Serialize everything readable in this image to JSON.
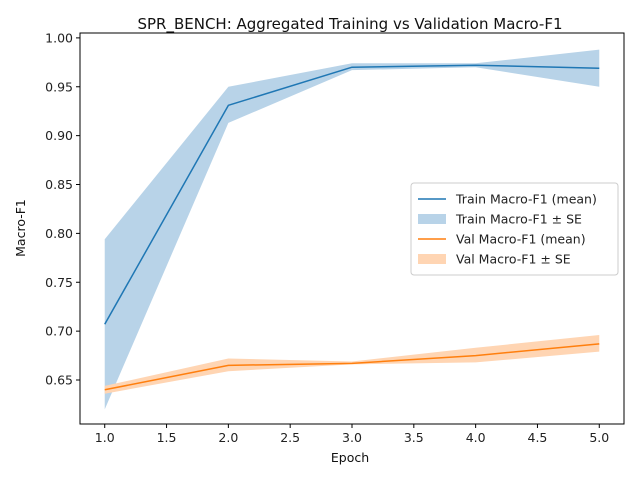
{
  "chart_data": {
    "type": "line",
    "title": "SPR_BENCH: Aggregated Training vs Validation Macro-F1",
    "xlabel": "Epoch",
    "ylabel": "Macro-F1",
    "xlim": [
      0.8,
      5.2
    ],
    "ylim": [
      0.605,
      1.005
    ],
    "xticks": [
      1.0,
      1.5,
      2.0,
      2.5,
      3.0,
      3.5,
      4.0,
      4.5,
      5.0
    ],
    "xtick_labels": [
      "1.0",
      "1.5",
      "2.0",
      "2.5",
      "3.0",
      "3.5",
      "4.0",
      "4.5",
      "5.0"
    ],
    "yticks": [
      0.65,
      0.7,
      0.75,
      0.8,
      0.85,
      0.9,
      0.95,
      1.0
    ],
    "ytick_labels": [
      "0.65",
      "0.70",
      "0.75",
      "0.80",
      "0.85",
      "0.90",
      "0.95",
      "1.00"
    ],
    "grid": false,
    "legend_position": "center-right",
    "x": [
      1,
      2,
      3,
      4,
      5
    ],
    "series": [
      {
        "name": "Train Macro-F1 (mean)",
        "band_name": "Train Macro-F1 ± SE",
        "color": "#1f77b4",
        "band_color": "#b8d3e8",
        "mean": [
          0.707,
          0.931,
          0.97,
          0.972,
          0.969
        ],
        "lower": [
          0.62,
          0.913,
          0.967,
          0.97,
          0.95
        ],
        "upper": [
          0.794,
          0.95,
          0.974,
          0.974,
          0.988
        ]
      },
      {
        "name": "Val Macro-F1 (mean)",
        "band_name": "Val Macro-F1 ± SE",
        "color": "#ff7f0e",
        "band_color": "#ffd5b3",
        "mean": [
          0.64,
          0.665,
          0.667,
          0.675,
          0.687
        ],
        "lower": [
          0.636,
          0.659,
          0.666,
          0.668,
          0.679
        ],
        "upper": [
          0.644,
          0.672,
          0.669,
          0.683,
          0.696
        ]
      }
    ]
  }
}
